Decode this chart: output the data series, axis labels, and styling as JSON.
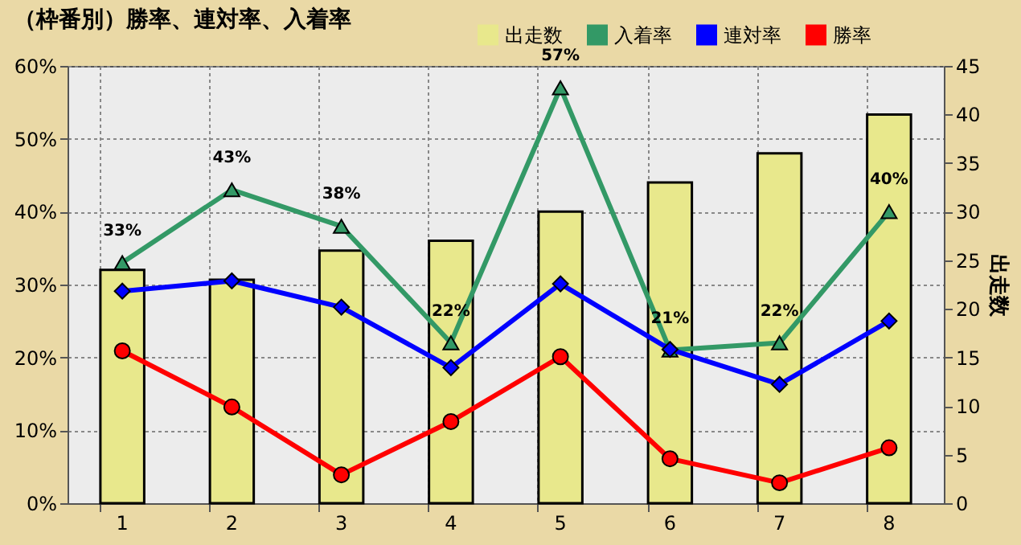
{
  "chart_data": {
    "type": "bar",
    "title": "（枠番別）勝率、連対率、入着率",
    "y2label": "出走数",
    "categories": [
      "1",
      "2",
      "3",
      "4",
      "5",
      "6",
      "7",
      "8"
    ],
    "series": [
      {
        "name": "出走数",
        "axis": "y2",
        "color": "#e8e88c",
        "values": [
          24,
          23,
          26,
          27,
          30,
          33,
          36,
          40
        ]
      },
      {
        "name": "入着率",
        "type": "line",
        "color": "#339966",
        "marker": "triangle",
        "values": [
          33,
          43,
          38,
          22,
          57,
          21,
          22,
          40
        ],
        "value_labels": [
          "33%",
          "43%",
          "38%",
          "22%",
          "57%",
          "21%",
          "22%",
          "40%"
        ]
      },
      {
        "name": "連対率",
        "type": "line",
        "color": "#0000ff",
        "marker": "diamond",
        "values": [
          29.1,
          30.5,
          26.9,
          18.6,
          30.1,
          21.1,
          16.3,
          25.0
        ]
      },
      {
        "name": "勝率",
        "type": "line",
        "color": "#ff0000",
        "marker": "circle",
        "values": [
          20.9,
          13.2,
          3.9,
          11.2,
          20.1,
          6.1,
          2.8,
          7.6
        ]
      }
    ],
    "ylim": [
      0,
      60
    ],
    "yticks": [
      {
        "value": 0,
        "label": "0%"
      },
      {
        "value": 10,
        "label": "10%"
      },
      {
        "value": 20,
        "label": "20%"
      },
      {
        "value": 30,
        "label": "30%"
      },
      {
        "value": 40,
        "label": "40%"
      },
      {
        "value": 50,
        "label": "50%"
      },
      {
        "value": 60,
        "label": "60%"
      }
    ],
    "y2lim": [
      0,
      45
    ],
    "y2ticks": [
      0,
      5,
      10,
      15,
      20,
      25,
      30,
      35,
      40,
      45
    ],
    "grid": true,
    "legend": "top right"
  }
}
